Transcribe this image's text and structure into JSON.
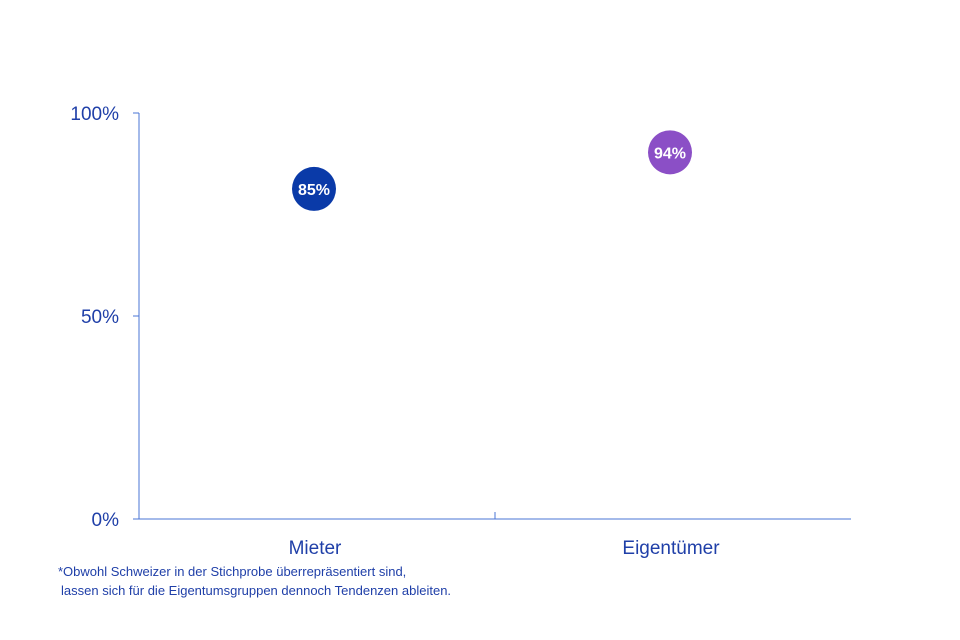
{
  "chart_data": {
    "type": "scatter",
    "categories": [
      "Mieter",
      "Eigentümer"
    ],
    "values": [
      85,
      94
    ],
    "point_labels": [
      "85%",
      "94%"
    ],
    "point_colors": [
      "#0a3aa8",
      "#8b4fc6"
    ],
    "ylim": [
      0,
      100
    ],
    "yticks": [
      0,
      50,
      100
    ],
    "ytick_labels": [
      "0%",
      "50%",
      "100%"
    ],
    "grid": false,
    "axis_color": "#4a74d6"
  },
  "footnote": {
    "line1": "*Obwohl Schweizer in der Stichprobe überrepräsentiert sind,",
    "line2": "lassen sich für die Eigentumsgruppen dennoch Tendenzen ableiten."
  }
}
